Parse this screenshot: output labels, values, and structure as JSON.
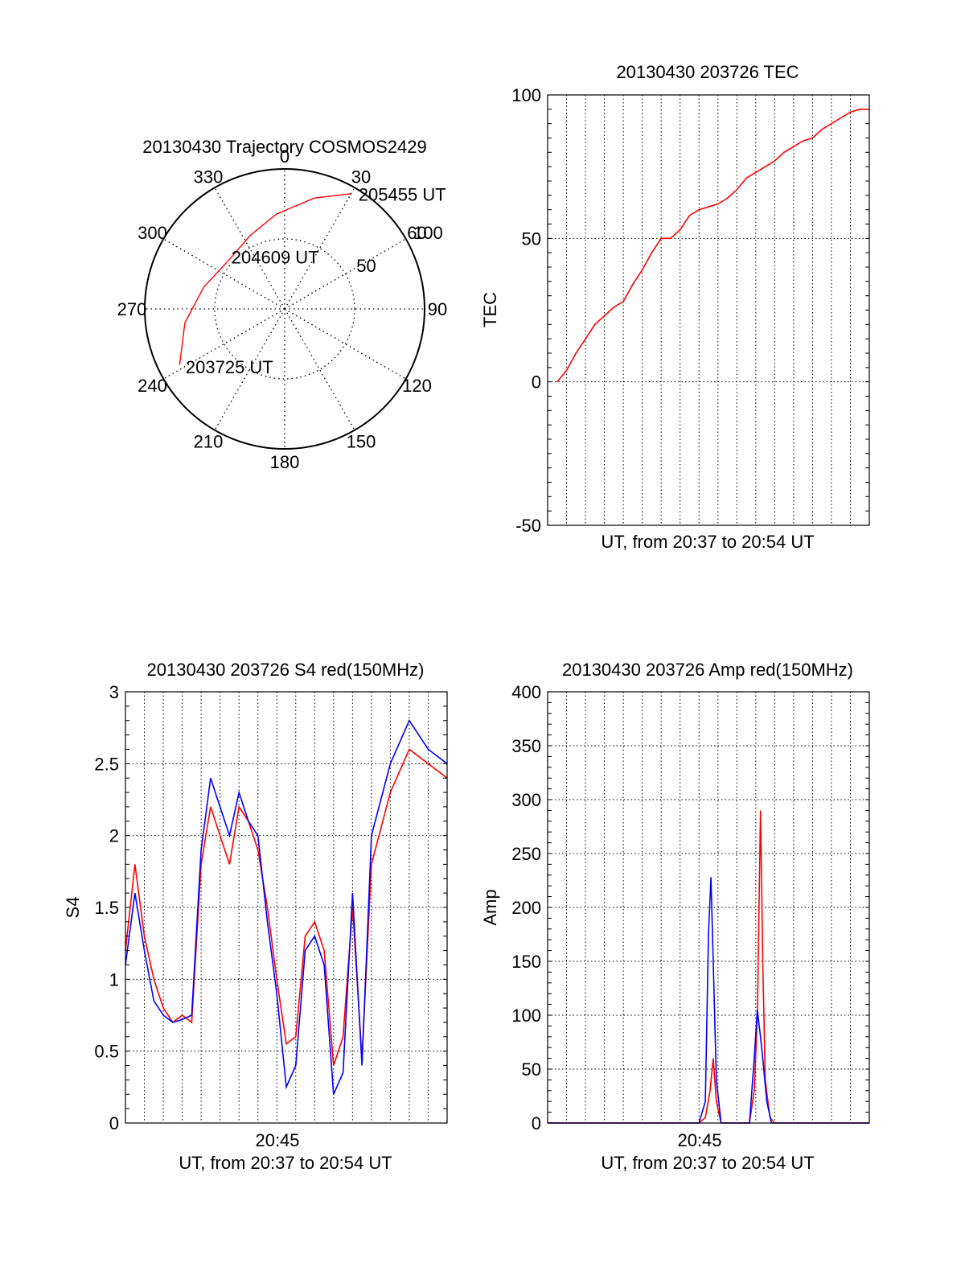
{
  "colors": {
    "red": "#ff0000",
    "blue": "#0000ff",
    "axis": "#000000",
    "grid": "#000000",
    "background": "#ffffff"
  },
  "chart_data": [
    {
      "type": "polar",
      "title": "20130430 Trajectory COSMOS2429",
      "angle_labels": [
        "0",
        "30",
        "60",
        "90",
        "120",
        "150",
        "180",
        "210",
        "240",
        "270",
        "300",
        "330"
      ],
      "radius_labels": [
        "50",
        "100"
      ],
      "rlim": [
        0,
        100
      ],
      "grid": true,
      "series": [
        {
          "points": [
            {
              "az": 242,
              "r": 85
            },
            {
              "az": 262,
              "r": 72
            },
            {
              "az": 285,
              "r": 60
            },
            {
              "az": 310,
              "r": 53
            },
            {
              "az": 335,
              "r": 58
            },
            {
              "az": 355,
              "r": 68
            },
            {
              "az": 15,
              "r": 82
            },
            {
              "az": 30,
              "r": 95
            }
          ]
        }
      ],
      "annotations": [
        {
          "text": "205455 UT",
          "az": 35,
          "r": 100
        },
        {
          "text": "204609 UT",
          "az": 318,
          "r": 50
        },
        {
          "text": "203725 UT",
          "az": 238,
          "r": 78
        }
      ]
    },
    {
      "type": "line",
      "title": "20130430 203726 TEC",
      "xlabel": "UT, from 20:37 to 20:54 UT",
      "ylabel": "TEC",
      "xlim": [
        "20:37",
        "20:54"
      ],
      "ylim": [
        -50,
        100
      ],
      "yticks": [
        -50,
        0,
        50,
        100
      ],
      "grid": true,
      "series": [
        {
          "points": [
            [
              "20:37:30",
              0
            ],
            [
              "20:38:00",
              4
            ],
            [
              "20:38:30",
              10
            ],
            [
              "20:39:00",
              15
            ],
            [
              "20:39:30",
              20
            ],
            [
              "20:40:00",
              23
            ],
            [
              "20:40:30",
              26
            ],
            [
              "20:41:00",
              28
            ],
            [
              "20:41:30",
              34
            ],
            [
              "20:42:00",
              39
            ],
            [
              "20:42:30",
              45
            ],
            [
              "20:43:00",
              50
            ],
            [
              "20:43:30",
              50
            ],
            [
              "20:44:00",
              53
            ],
            [
              "20:44:30",
              58
            ],
            [
              "20:45:00",
              60
            ],
            [
              "20:45:30",
              61
            ],
            [
              "20:46:00",
              62
            ],
            [
              "20:46:30",
              64
            ],
            [
              "20:47:00",
              67
            ],
            [
              "20:47:30",
              71
            ],
            [
              "20:48:00",
              73
            ],
            [
              "20:48:30",
              75
            ],
            [
              "20:49:00",
              77
            ],
            [
              "20:49:30",
              80
            ],
            [
              "20:50:00",
              82
            ],
            [
              "20:50:30",
              84
            ],
            [
              "20:51:00",
              85
            ],
            [
              "20:51:30",
              88
            ],
            [
              "20:52:00",
              90
            ],
            [
              "20:52:30",
              92
            ],
            [
              "20:53:00",
              94
            ],
            [
              "20:53:30",
              95
            ],
            [
              "20:54:00",
              95
            ]
          ]
        }
      ]
    },
    {
      "type": "line",
      "title": "20130430 203726 S4 red(150MHz)",
      "xlabel": "UT, from 20:37 to 20:54 UT",
      "ylabel": "S4",
      "xlim": [
        "20:37",
        "20:54"
      ],
      "xtick_labels": [
        "20:45"
      ],
      "ylim": [
        0,
        3
      ],
      "yticks": [
        "0",
        "0.5",
        "1",
        "1.5",
        "2",
        "2.5",
        "3"
      ],
      "grid": true,
      "series": [
        {
          "color": "red",
          "points": [
            [
              "20:37:00",
              1.2
            ],
            [
              "20:37:30",
              1.8
            ],
            [
              "20:38:00",
              1.3
            ],
            [
              "20:38:30",
              1.0
            ],
            [
              "20:39:00",
              0.8
            ],
            [
              "20:39:30",
              0.7
            ],
            [
              "20:40:00",
              0.75
            ],
            [
              "20:40:30",
              0.7
            ],
            [
              "20:41:00",
              1.8
            ],
            [
              "20:41:30",
              2.2
            ],
            [
              "20:42:00",
              2.0
            ],
            [
              "20:42:30",
              1.8
            ],
            [
              "20:43:00",
              2.2
            ],
            [
              "20:43:30",
              2.1
            ],
            [
              "20:44:00",
              1.9
            ],
            [
              "20:44:30",
              1.5
            ],
            [
              "20:45:00",
              1.0
            ],
            [
              "20:45:30",
              0.55
            ],
            [
              "20:46:00",
              0.6
            ],
            [
              "20:46:30",
              1.3
            ],
            [
              "20:47:00",
              1.4
            ],
            [
              "20:47:30",
              1.2
            ],
            [
              "20:48:00",
              0.4
            ],
            [
              "20:48:30",
              0.6
            ],
            [
              "20:49:00",
              1.5
            ],
            [
              "20:49:30",
              0.45
            ],
            [
              "20:50:00",
              1.8
            ],
            [
              "20:51:00",
              2.3
            ],
            [
              "20:52:00",
              2.6
            ],
            [
              "20:53:00",
              2.5
            ],
            [
              "20:54:00",
              2.4
            ]
          ]
        },
        {
          "color": "blue",
          "points": [
            [
              "20:37:00",
              1.1
            ],
            [
              "20:37:30",
              1.6
            ],
            [
              "20:38:00",
              1.2
            ],
            [
              "20:38:30",
              0.85
            ],
            [
              "20:39:00",
              0.75
            ],
            [
              "20:39:30",
              0.7
            ],
            [
              "20:40:00",
              0.72
            ],
            [
              "20:40:30",
              0.75
            ],
            [
              "20:41:00",
              1.9
            ],
            [
              "20:41:30",
              2.4
            ],
            [
              "20:42:00",
              2.2
            ],
            [
              "20:42:30",
              2.0
            ],
            [
              "20:43:00",
              2.3
            ],
            [
              "20:43:30",
              2.1
            ],
            [
              "20:44:00",
              2.0
            ],
            [
              "20:44:30",
              1.4
            ],
            [
              "20:45:00",
              0.9
            ],
            [
              "20:45:30",
              0.25
            ],
            [
              "20:46:00",
              0.4
            ],
            [
              "20:46:30",
              1.2
            ],
            [
              "20:47:00",
              1.3
            ],
            [
              "20:47:30",
              1.1
            ],
            [
              "20:48:00",
              0.2
            ],
            [
              "20:48:30",
              0.35
            ],
            [
              "20:49:00",
              1.6
            ],
            [
              "20:49:30",
              0.4
            ],
            [
              "20:50:00",
              2.0
            ],
            [
              "20:51:00",
              2.5
            ],
            [
              "20:52:00",
              2.8
            ],
            [
              "20:53:00",
              2.6
            ],
            [
              "20:54:00",
              2.5
            ]
          ]
        }
      ]
    },
    {
      "type": "line",
      "title": "20130430 203726 Amp red(150MHz)",
      "xlabel": "UT, from 20:37 to 20:54 UT",
      "ylabel": "Amp",
      "xlim": [
        "20:37",
        "20:54"
      ],
      "xtick_labels": [
        "20:45"
      ],
      "ylim": [
        0,
        400
      ],
      "yticks": [
        0,
        50,
        100,
        150,
        200,
        250,
        300,
        350,
        400
      ],
      "grid": true,
      "series": [
        {
          "color": "red",
          "points": [
            [
              "20:37:00",
              0
            ],
            [
              "20:45:00",
              0
            ],
            [
              "20:45:20",
              5
            ],
            [
              "20:45:35",
              30
            ],
            [
              "20:45:45",
              60
            ],
            [
              "20:45:55",
              20
            ],
            [
              "20:46:10",
              0
            ],
            [
              "20:47:40",
              0
            ],
            [
              "20:47:55",
              30
            ],
            [
              "20:48:05",
              100
            ],
            [
              "20:48:15",
              290
            ],
            [
              "20:48:22",
              150
            ],
            [
              "20:48:30",
              40
            ],
            [
              "20:48:45",
              5
            ],
            [
              "20:49:00",
              0
            ],
            [
              "20:54:00",
              0
            ]
          ]
        },
        {
          "color": "blue",
          "points": [
            [
              "20:37:00",
              0
            ],
            [
              "20:45:00",
              0
            ],
            [
              "20:45:20",
              20
            ],
            [
              "20:45:30",
              175
            ],
            [
              "20:45:38",
              228
            ],
            [
              "20:45:45",
              150
            ],
            [
              "20:45:55",
              40
            ],
            [
              "20:46:10",
              0
            ],
            [
              "20:47:40",
              0
            ],
            [
              "20:47:55",
              60
            ],
            [
              "20:48:05",
              105
            ],
            [
              "20:48:15",
              80
            ],
            [
              "20:48:22",
              60
            ],
            [
              "20:48:35",
              20
            ],
            [
              "20:48:50",
              0
            ],
            [
              "20:54:00",
              0
            ]
          ]
        }
      ]
    }
  ]
}
